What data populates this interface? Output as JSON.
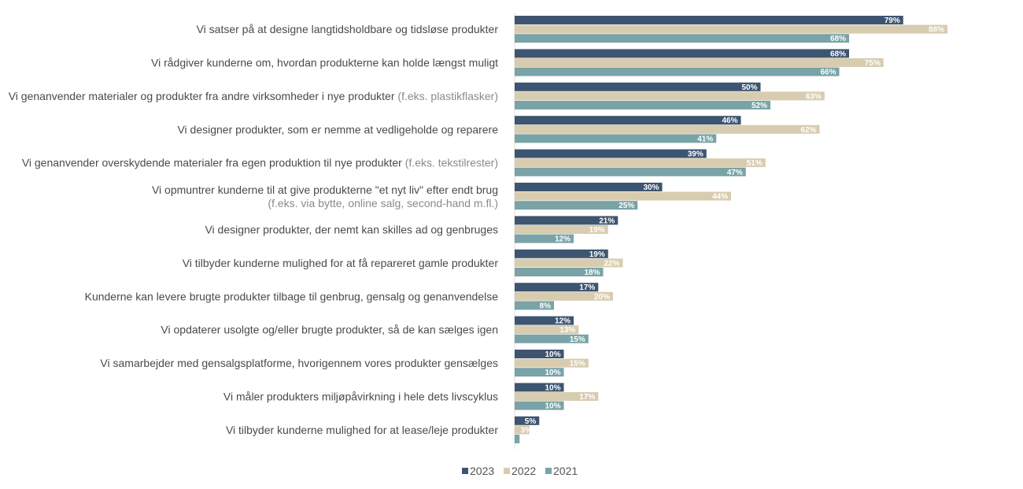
{
  "chart_data": {
    "type": "bar",
    "orientation": "horizontal",
    "title": "",
    "xlabel": "",
    "ylabel": "",
    "xlim": [
      0,
      100
    ],
    "grid": false,
    "legend_position": "bottom",
    "categories": [
      {
        "main": "Vi satser på at designe langtidsholdbare og tidsløse produkter",
        "note": "",
        "note_line": ""
      },
      {
        "main": "Vi rådgiver kunderne om, hvordan produkterne kan holde længst muligt",
        "note": "",
        "note_line": ""
      },
      {
        "main": "Vi genanvender materialer og produkter fra andre virksomheder i nye produkter",
        "note": "(f.eks. plastikflasker)",
        "note_line": ""
      },
      {
        "main": "Vi designer produkter, som er nemme at vedligeholde og reparere",
        "note": "",
        "note_line": ""
      },
      {
        "main": "Vi genanvender overskydende materialer fra egen produktion til nye produkter",
        "note": "(f.eks. tekstilrester)",
        "note_line": ""
      },
      {
        "main": "Vi opmuntrer kunderne til at give produkterne \"et nyt liv\" efter endt brug",
        "note": "",
        "note_line": "(f.eks. via bytte, online salg, second-hand m.fl.)"
      },
      {
        "main": "Vi designer produkter, der nemt kan skilles ad og genbruges",
        "note": "",
        "note_line": ""
      },
      {
        "main": "Vi tilbyder kunderne mulighed for at få repareret gamle produkter",
        "note": "",
        "note_line": ""
      },
      {
        "main": "Kunderne kan levere brugte produkter tilbage til genbrug, gensalg og genanvendelse",
        "note": "",
        "note_line": ""
      },
      {
        "main": "Vi opdaterer usolgte og/eller brugte produkter, så de kan sælges igen",
        "note": "",
        "note_line": ""
      },
      {
        "main": "Vi samarbejder med gensalgsplatforme, hvorigennem vores produkter gensælges",
        "note": "",
        "note_line": ""
      },
      {
        "main": "Vi måler produkters miljøpåvirkning i hele dets livscyklus",
        "note": "",
        "note_line": ""
      },
      {
        "main": "Vi tilbyder kunderne mulighed for at lease/leje produkter",
        "note": "",
        "note_line": ""
      }
    ],
    "series": [
      {
        "name": "2023",
        "color": "#3d5570",
        "label_color": "#ffffff",
        "values": [
          79,
          68,
          50,
          46,
          39,
          30,
          21,
          19,
          17,
          12,
          10,
          10,
          5
        ],
        "labels": [
          "79%",
          "68%",
          "50%",
          "46%",
          "39%",
          "30%",
          "21%",
          "19%",
          "17%",
          "12%",
          "10%",
          "10%",
          "5%"
        ]
      },
      {
        "name": "2022",
        "color": "#d8ccb0",
        "label_color": "#ffffff",
        "values": [
          88,
          75,
          63,
          62,
          51,
          44,
          19,
          22,
          20,
          13,
          15,
          17,
          3
        ],
        "labels": [
          "88%",
          "75%",
          "63%",
          "62%",
          "51%",
          "44%",
          "19%",
          "22%",
          "20%",
          "13%",
          "15%",
          "17%",
          "3%"
        ]
      },
      {
        "name": "2021",
        "color": "#79a3a6",
        "label_color": "#ffffff",
        "values": [
          68,
          66,
          52,
          41,
          47,
          25,
          12,
          18,
          8,
          15,
          10,
          10,
          1
        ],
        "labels": [
          "68%",
          "66%",
          "52%",
          "41%",
          "47%",
          "25%",
          "12%",
          "18%",
          "8%",
          "15%",
          "10%",
          "10%",
          ""
        ]
      }
    ]
  }
}
